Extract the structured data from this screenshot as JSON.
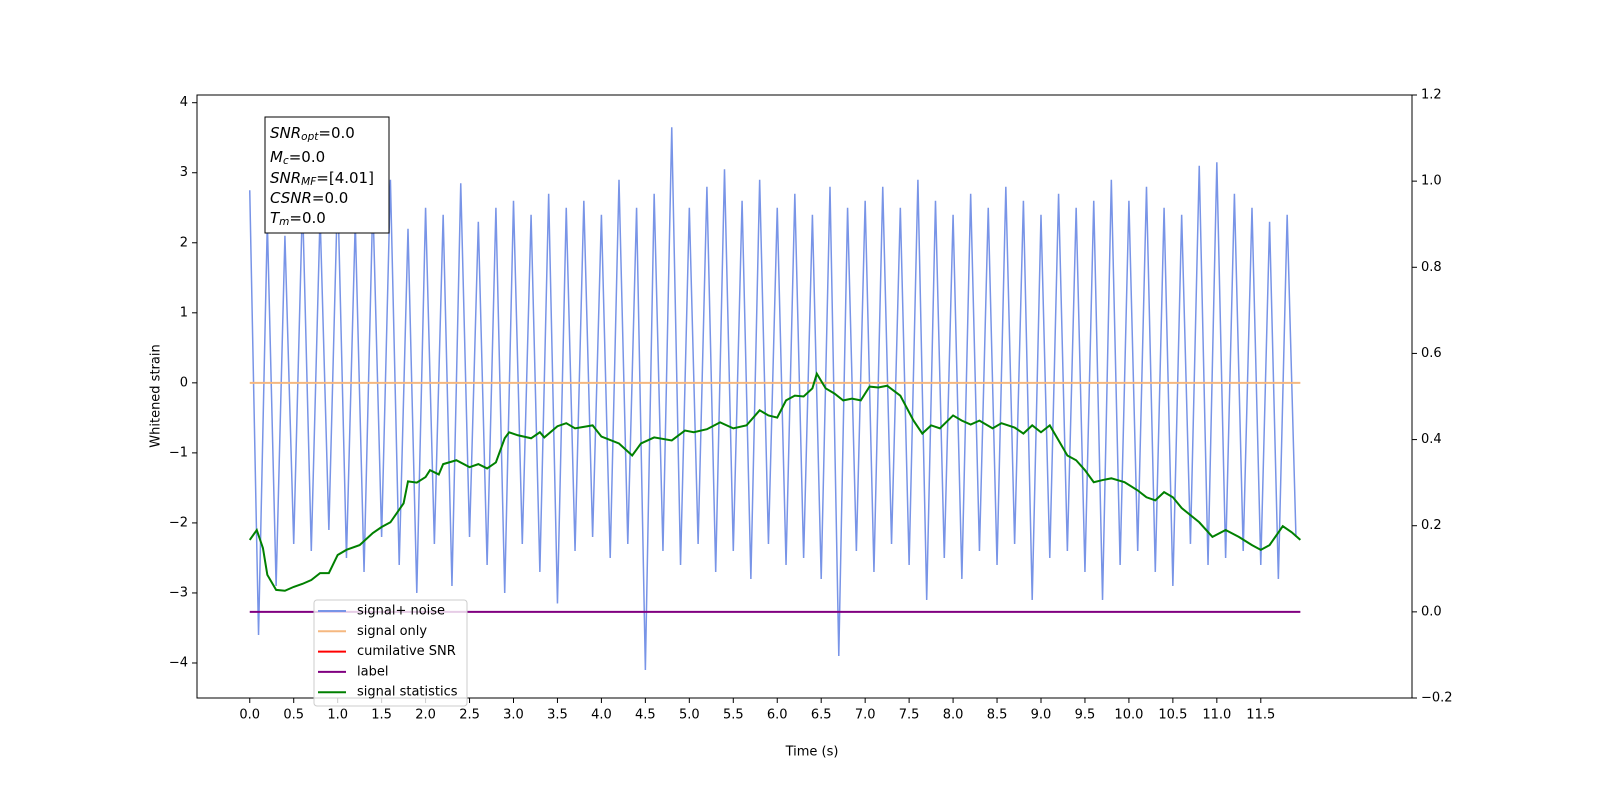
{
  "chart_data": {
    "type": "line",
    "xlabel": "Time (s)",
    "ylabel": "Whitened strain",
    "xlim": [
      -0.6,
      13.22
    ],
    "ylim": [
      -4.5,
      4.11
    ],
    "y2lim": [
      -0.2,
      1.2
    ],
    "xticks": [
      {
        "value": 0,
        "label": "0.0"
      },
      0.5,
      {
        "value": 1,
        "label": "1.0"
      },
      1.5,
      {
        "value": 2,
        "label": "2.0"
      },
      2.5,
      {
        "value": 3,
        "label": "3.0"
      },
      3.5,
      {
        "value": 4,
        "label": "4.0"
      },
      4.5,
      {
        "value": 5,
        "label": "5.0"
      },
      5.5,
      {
        "value": 6,
        "label": "6.0"
      },
      6.5,
      {
        "value": 7,
        "label": "7.0"
      },
      7.5,
      {
        "value": 8,
        "label": "8.0"
      },
      8.5,
      {
        "value": 9,
        "label": "9.0"
      },
      9.5,
      {
        "value": 10,
        "label": "10.0"
      },
      10.5,
      {
        "value": 11,
        "label": "11.0"
      },
      11.5
    ],
    "yticks": [
      {
        "value": -4,
        "label": "−4"
      },
      {
        "value": -3,
        "label": "−3"
      },
      {
        "value": -2,
        "label": "−2"
      },
      {
        "value": -1,
        "label": "−1"
      },
      0,
      1,
      2,
      3,
      4
    ],
    "y2ticks": [
      {
        "value": -0.2,
        "label": "−0.2"
      },
      {
        "value": 0,
        "label": "0.0"
      },
      0.2,
      0.4,
      0.6,
      0.8,
      {
        "value": 1,
        "label": "1.0"
      },
      1.2
    ],
    "annotation": [
      {
        "main": "SNR",
        "sub": "opt",
        "rest": "=0.0"
      },
      {
        "main": "M",
        "sub": "c",
        "rest": "=0.0"
      },
      {
        "main": "SNR",
        "sub": "MF",
        "rest": "=[4.01]"
      },
      {
        "main": "CSNR",
        "rest": "=0.0"
      },
      {
        "main": "T",
        "sub": "m",
        "rest": "=0.0"
      }
    ],
    "series": [
      {
        "name": "signal+ noise",
        "color": "#7894e7",
        "x": [
          0,
          0.1,
          0.2,
          0.3,
          0.4,
          0.5,
          0.6,
          0.7,
          0.8,
          0.9,
          1,
          1.1,
          1.2,
          1.3,
          1.4,
          1.5,
          1.6,
          1.7,
          1.8,
          1.9,
          2,
          2.1,
          2.2,
          2.3,
          2.4,
          2.5,
          2.6,
          2.7,
          2.8,
          2.9,
          3,
          3.1,
          3.2,
          3.3,
          3.4,
          3.5,
          3.6,
          3.7,
          3.8,
          3.9,
          4,
          4.1,
          4.2,
          4.3,
          4.4,
          4.5,
          4.6,
          4.7,
          4.8,
          4.9,
          5,
          5.1,
          5.2,
          5.3,
          5.4,
          5.5,
          5.6,
          5.7,
          5.8,
          5.9,
          6,
          6.1,
          6.2,
          6.3,
          6.4,
          6.5,
          6.6,
          6.7,
          6.8,
          6.9,
          7,
          7.1,
          7.2,
          7.3,
          7.4,
          7.5,
          7.6,
          7.7,
          7.8,
          7.9,
          8,
          8.1,
          8.2,
          8.3,
          8.4,
          8.5,
          8.6,
          8.7,
          8.8,
          8.9,
          9,
          9.1,
          9.2,
          9.3,
          9.4,
          9.5,
          9.6,
          9.7,
          9.8,
          9.9,
          10,
          10.1,
          10.2,
          10.3,
          10.4,
          10.5,
          10.6,
          10.7,
          10.8,
          10.9,
          11,
          11.1,
          11.2,
          11.3,
          11.4,
          11.5,
          11.6,
          11.7,
          11.8,
          11.9
        ],
        "values": [
          2.75,
          -3.6,
          2.3,
          -2.9,
          2.1,
          -2.3,
          2.6,
          -2.4,
          2.4,
          -2.1,
          2.8,
          -2.5,
          2.3,
          -2.7,
          2.6,
          -2.2,
          2.9,
          -2.6,
          2.2,
          -3.0,
          2.5,
          -2.3,
          2.4,
          -2.9,
          2.85,
          -2.2,
          2.3,
          -2.6,
          2.5,
          -3.0,
          2.6,
          -2.3,
          2.4,
          -2.7,
          2.7,
          -3.15,
          2.5,
          -2.4,
          2.6,
          -2.2,
          2.4,
          -2.5,
          2.9,
          -2.3,
          2.5,
          -4.1,
          2.7,
          -2.4,
          3.65,
          -2.6,
          2.5,
          -2.3,
          2.8,
          -2.7,
          3.05,
          -2.4,
          2.6,
          -2.8,
          2.9,
          -2.3,
          2.5,
          -2.6,
          2.7,
          -2.5,
          2.4,
          -2.8,
          2.8,
          -3.9,
          2.5,
          -2.4,
          2.6,
          -2.7,
          2.8,
          -2.3,
          2.5,
          -2.6,
          2.9,
          -3.1,
          2.6,
          -2.5,
          2.4,
          -2.8,
          2.7,
          -2.4,
          2.5,
          -2.6,
          2.8,
          -2.3,
          2.6,
          -3.1,
          2.4,
          -2.5,
          2.7,
          -2.4,
          2.5,
          -2.7,
          2.6,
          -3.1,
          2.9,
          -2.6,
          2.6,
          -2.4,
          2.8,
          -2.7,
          2.5,
          -2.9,
          2.4,
          -2.3,
          3.1,
          -2.6,
          3.15,
          -2.5,
          2.7,
          -2.4,
          2.5,
          -2.6,
          2.3,
          -2.8,
          2.4,
          -2.2
        ]
      },
      {
        "name": "signal only",
        "color": "#f5b880",
        "x": [
          0,
          11.95
        ],
        "values": [
          0,
          0
        ]
      },
      {
        "name": "cumilative SNR",
        "color": "#ff0000"
      },
      {
        "name": "label",
        "color": "#800080",
        "axis": "y2",
        "x": [
          0,
          11.95
        ],
        "values": [
          0,
          0
        ]
      },
      {
        "name": "signal statistics",
        "color": "#008000",
        "axis": "y2",
        "x": [
          0,
          0.08,
          0.15,
          0.2,
          0.3,
          0.4,
          0.5,
          0.6,
          0.7,
          0.8,
          0.9,
          1,
          1.1,
          1.25,
          1.4,
          1.5,
          1.6,
          1.75,
          1.8,
          1.9,
          2,
          2.05,
          2.15,
          2.2,
          2.35,
          2.5,
          2.6,
          2.7,
          2.8,
          2.9,
          2.95,
          3.05,
          3.2,
          3.3,
          3.35,
          3.5,
          3.6,
          3.7,
          3.9,
          4,
          4.2,
          4.35,
          4.45,
          4.6,
          4.8,
          4.95,
          5.05,
          5.2,
          5.35,
          5.5,
          5.65,
          5.8,
          5.9,
          6,
          6.1,
          6.2,
          6.3,
          6.4,
          6.45,
          6.55,
          6.65,
          6.75,
          6.85,
          6.95,
          7.05,
          7.15,
          7.25,
          7.4,
          7.55,
          7.65,
          7.75,
          7.85,
          8,
          8.1,
          8.2,
          8.3,
          8.45,
          8.55,
          8.7,
          8.8,
          8.9,
          9,
          9.1,
          9.2,
          9.3,
          9.4,
          9.5,
          9.6,
          9.7,
          9.8,
          9.95,
          10.1,
          10.2,
          10.3,
          10.4,
          10.5,
          10.6,
          10.8,
          10.95,
          11.1,
          11.25,
          11.4,
          11.5,
          11.6,
          11.75,
          11.85,
          11.95
        ],
        "values": [
          0.167,
          0.19,
          0.148,
          0.086,
          0.051,
          0.049,
          0.058,
          0.065,
          0.074,
          0.09,
          0.09,
          0.132,
          0.144,
          0.155,
          0.183,
          0.197,
          0.208,
          0.252,
          0.303,
          0.3,
          0.313,
          0.329,
          0.319,
          0.343,
          0.352,
          0.336,
          0.343,
          0.333,
          0.347,
          0.403,
          0.417,
          0.41,
          0.403,
          0.417,
          0.405,
          0.431,
          0.438,
          0.426,
          0.433,
          0.407,
          0.391,
          0.363,
          0.391,
          0.405,
          0.398,
          0.421,
          0.417,
          0.424,
          0.44,
          0.426,
          0.433,
          0.468,
          0.456,
          0.451,
          0.491,
          0.502,
          0.5,
          0.519,
          0.553,
          0.519,
          0.507,
          0.491,
          0.495,
          0.491,
          0.523,
          0.521,
          0.525,
          0.502,
          0.444,
          0.414,
          0.433,
          0.426,
          0.456,
          0.444,
          0.435,
          0.444,
          0.426,
          0.438,
          0.428,
          0.414,
          0.433,
          0.417,
          0.433,
          0.398,
          0.363,
          0.352,
          0.329,
          0.301,
          0.306,
          0.31,
          0.301,
          0.282,
          0.266,
          0.259,
          0.278,
          0.266,
          0.241,
          0.208,
          0.174,
          0.19,
          0.174,
          0.155,
          0.144,
          0.155,
          0.199,
          0.185,
          0.167
        ]
      }
    ]
  }
}
